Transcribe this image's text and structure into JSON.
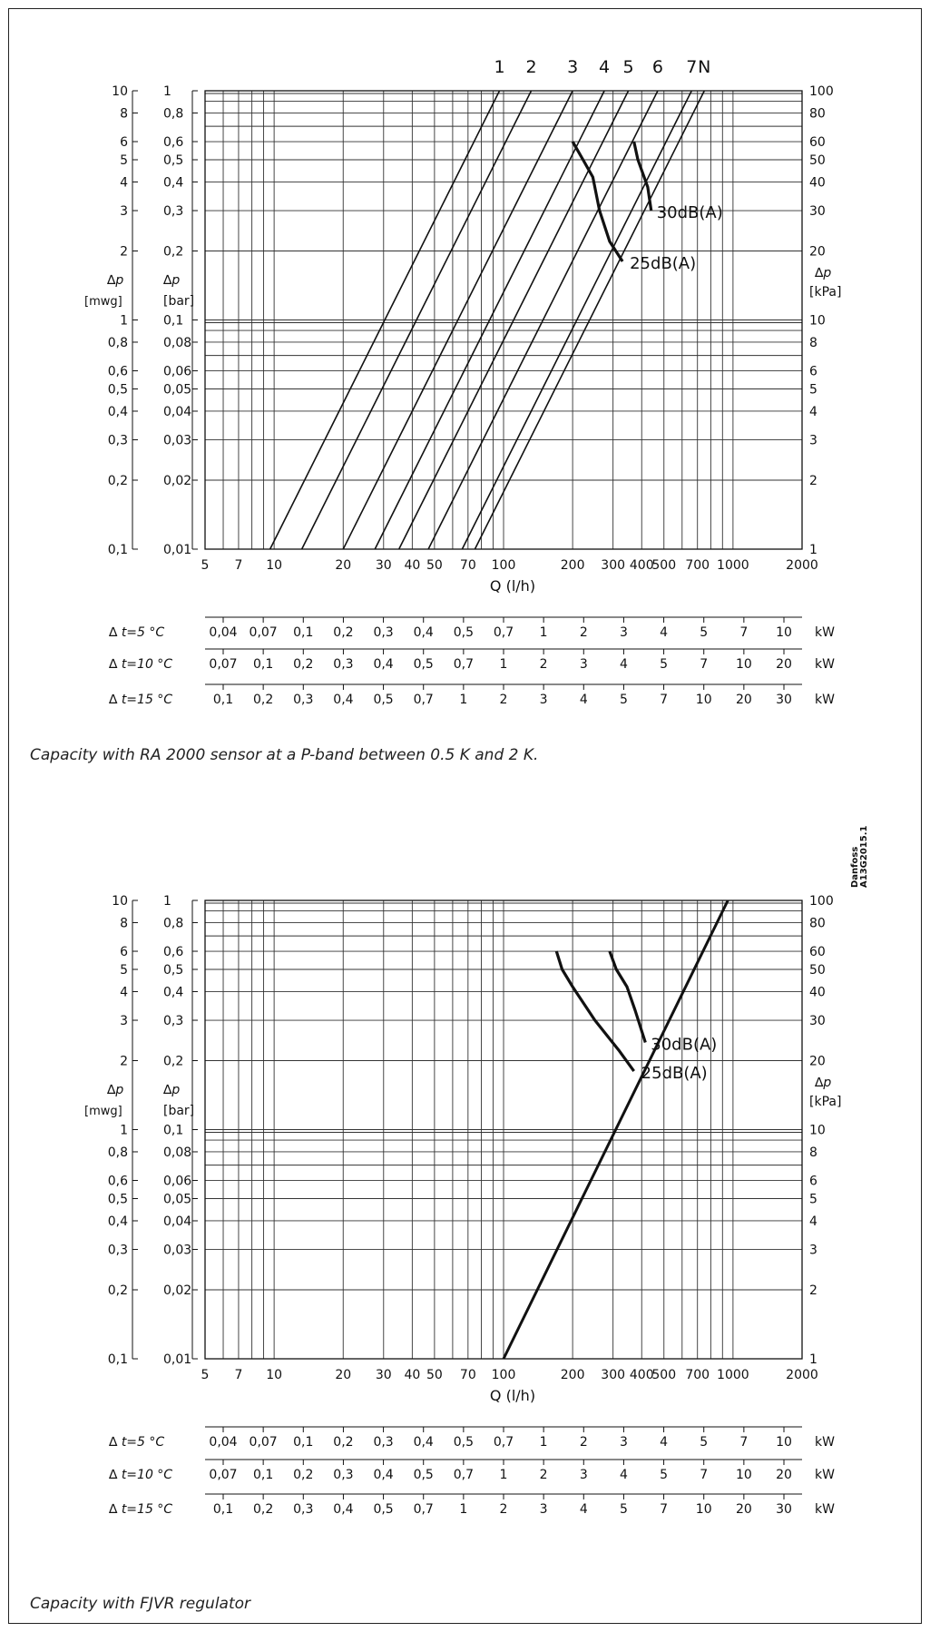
{
  "maker_mark": {
    "line1": "Danfoss",
    "line2": "A13G2015.1"
  },
  "chart_data": [
    {
      "type": "line",
      "caption": "Capacity with RA 2000 sensor at a P-band between 0.5 K and 2 K.",
      "x_scale": "log",
      "xlim": [
        5,
        2000
      ],
      "ylim_bar": [
        0.01,
        1
      ],
      "xlabel": "Q  (l/h)",
      "x_ticks": [
        "5",
        "7",
        "10",
        "20",
        "30",
        "40",
        "50",
        "70",
        "100",
        "200",
        "300",
        "400",
        "500",
        "700",
        "1000",
        "2000"
      ],
      "left_mwg_label": [
        "∆p",
        "[mwg]"
      ],
      "left_mwg_ticks": [
        "10",
        "8",
        "6",
        "5",
        "4",
        "3",
        "2",
        "1",
        "0,8",
        "0,6",
        "0,5",
        "0,4",
        "0,3",
        "0,2",
        "0,1"
      ],
      "left_bar_label": [
        "∆p",
        "[bar]"
      ],
      "left_bar_ticks": [
        "1",
        "0,8",
        "0,6",
        "0,5",
        "0,4",
        "0,3",
        "0,2",
        "0,1",
        "0,08",
        "0,06",
        "0,05",
        "0,04",
        "0,03",
        "0,02",
        "0,01"
      ],
      "right_kpa_label": [
        "∆p",
        "[kPa]"
      ],
      "right_kpa_ticks": [
        "100",
        "80",
        "60",
        "50",
        "40",
        "30",
        "20",
        "10",
        "8",
        "6",
        "5",
        "4",
        "3",
        "2",
        "1"
      ],
      "series": [
        {
          "name": "1",
          "x": [
            9.6,
            96
          ],
          "y": [
            0.01,
            1
          ]
        },
        {
          "name": "2",
          "x": [
            13.2,
            132
          ],
          "y": [
            0.01,
            1
          ]
        },
        {
          "name": "3",
          "x": [
            20,
            200
          ],
          "y": [
            0.01,
            1
          ]
        },
        {
          "name": "4",
          "x": [
            27.5,
            275
          ],
          "y": [
            0.01,
            1
          ]
        },
        {
          "name": "5",
          "x": [
            35,
            350
          ],
          "y": [
            0.01,
            1
          ]
        },
        {
          "name": "6",
          "x": [
            47,
            470
          ],
          "y": [
            0.01,
            1
          ]
        },
        {
          "name": "7",
          "x": [
            66,
            660
          ],
          "y": [
            0.01,
            1
          ]
        },
        {
          "name": "N",
          "x": [
            75,
            750
          ],
          "y": [
            0.01,
            1
          ]
        }
      ],
      "noise_curves": [
        {
          "name": "30dB(A)",
          "x": [
            370,
            385,
            410,
            425,
            440
          ],
          "y": [
            0.6,
            0.5,
            0.42,
            0.38,
            0.3
          ]
        },
        {
          "name": "25dB(A)",
          "x": [
            200,
            222,
            245,
            262,
            290,
            330
          ],
          "y": [
            0.6,
            0.5,
            0.42,
            0.3,
            0.22,
            0.18
          ]
        }
      ],
      "power_scales": [
        {
          "label": "∆ t=5 °C",
          "unit": "kW",
          "ticks": [
            "0,04",
            "0,07",
            "0,1",
            "0,2",
            "0,3",
            "0,4",
            "0,5",
            "0,7",
            "1",
            "2",
            "3",
            "4",
            "5",
            "7",
            "10"
          ]
        },
        {
          "label": "∆ t=10 °C",
          "unit": "kW",
          "ticks": [
            "0,07",
            "0,1",
            "0,2",
            "0,3",
            "0,4",
            "0,5",
            "0,7",
            "1",
            "2",
            "3",
            "4",
            "5",
            "7",
            "10",
            "20"
          ]
        },
        {
          "label": "∆ t=15 °C",
          "unit": "kW",
          "ticks": [
            "0,1",
            "0,2",
            "0,3",
            "0,4",
            "0,5",
            "0,7",
            "1",
            "2",
            "3",
            "4",
            "5",
            "7",
            "10",
            "20",
            "30"
          ]
        }
      ]
    },
    {
      "type": "line",
      "caption": "Capacity with FJVR regulator",
      "x_scale": "log",
      "xlim": [
        5,
        2000
      ],
      "ylim_bar": [
        0.01,
        1
      ],
      "xlabel": "Q  (l/h)",
      "x_ticks": [
        "5",
        "7",
        "10",
        "20",
        "30",
        "40",
        "50",
        "70",
        "100",
        "200",
        "300",
        "400",
        "500",
        "700",
        "1000",
        "2000"
      ],
      "left_mwg_label": [
        "∆p",
        "[mwg]"
      ],
      "left_mwg_ticks": [
        "10",
        "8",
        "6",
        "5",
        "4",
        "3",
        "2",
        "1",
        "0,8",
        "0,6",
        "0,5",
        "0,4",
        "0,3",
        "0,2",
        "0,1"
      ],
      "left_bar_label": [
        "∆p",
        "[bar]"
      ],
      "left_bar_ticks": [
        "1",
        "0,8",
        "0,6",
        "0,5",
        "0,4",
        "0,3",
        "0,2",
        "0,1",
        "0,08",
        "0,06",
        "0,05",
        "0,04",
        "0,03",
        "0,02",
        "0,01"
      ],
      "right_kpa_label": [
        "∆p",
        "[kPa]"
      ],
      "right_kpa_ticks": [
        "100",
        "80",
        "60",
        "50",
        "40",
        "30",
        "20",
        "10",
        "8",
        "6",
        "5",
        "4",
        "3",
        "2",
        "1"
      ],
      "series": [
        {
          "x": [
            100,
            950
          ],
          "y": [
            0.01,
            1
          ]
        }
      ],
      "noise_curves": [
        {
          "name": "30dB(A)",
          "x": [
            290,
            310,
            345,
            375,
            415
          ],
          "y": [
            0.6,
            0.5,
            0.42,
            0.33,
            0.24
          ]
        },
        {
          "name": "25dB(A)",
          "x": [
            170,
            180,
            200,
            250,
            320,
            370
          ],
          "y": [
            0.6,
            0.5,
            0.42,
            0.3,
            0.22,
            0.18
          ]
        }
      ],
      "power_scales": [
        {
          "label": "∆ t=5 °C",
          "unit": "kW",
          "ticks": [
            "0,04",
            "0,07",
            "0,1",
            "0,2",
            "0,3",
            "0,4",
            "0,5",
            "0,7",
            "1",
            "2",
            "3",
            "4",
            "5",
            "7",
            "10"
          ]
        },
        {
          "label": "∆ t=10 °C",
          "unit": "kW",
          "ticks": [
            "0,07",
            "0,1",
            "0,2",
            "0,3",
            "0,4",
            "0,5",
            "0,7",
            "1",
            "2",
            "3",
            "4",
            "5",
            "7",
            "10",
            "20"
          ]
        },
        {
          "label": "∆ t=15 °C",
          "unit": "kW",
          "ticks": [
            "0,1",
            "0,2",
            "0,3",
            "0,4",
            "0,5",
            "0,7",
            "1",
            "2",
            "3",
            "4",
            "5",
            "7",
            "10",
            "20",
            "30"
          ]
        }
      ]
    }
  ]
}
